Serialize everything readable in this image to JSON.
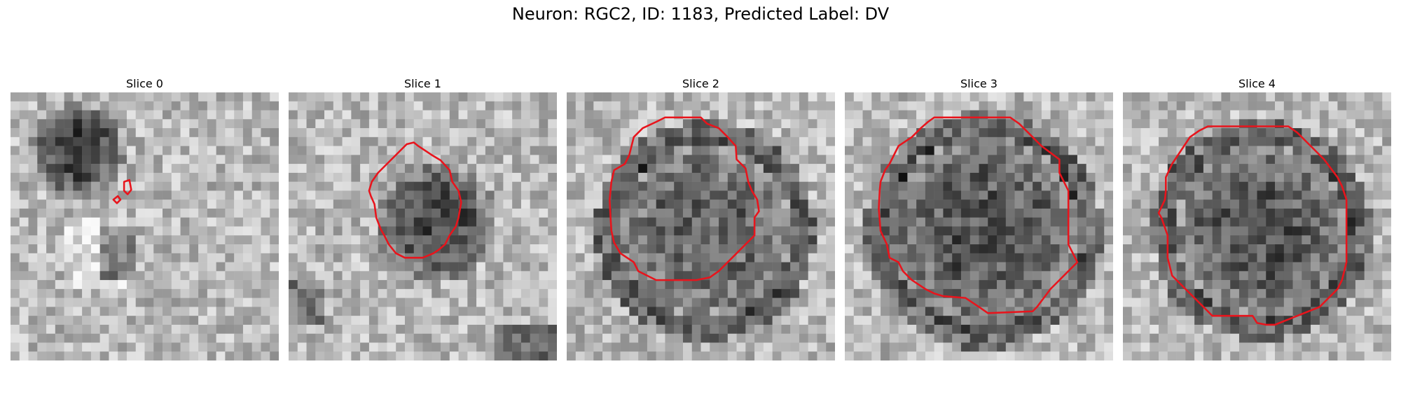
{
  "figure": {
    "title": "Neuron: RGC2, ID: 1183, Predicted Label: DV",
    "grid_size": 30,
    "contour_color": "#e8141c"
  },
  "panels": [
    {
      "title": "Slice 0",
      "seed": 11,
      "blob": {
        "cx": 7,
        "cy": 6,
        "r": 5.5,
        "darkness": 0.45
      },
      "ring": false,
      "contour_type": "small"
    },
    {
      "title": "Slice 1",
      "seed": 23,
      "blob": {
        "cx": 16,
        "cy": 14,
        "r": 7,
        "darkness": 0.4
      },
      "ring": false,
      "contour_type": "medium"
    },
    {
      "title": "Slice 2",
      "seed": 37,
      "blob": {
        "cx": 15,
        "cy": 15,
        "r": 11,
        "darkness": 0.3
      },
      "ring": true,
      "contour_type": "large"
    },
    {
      "title": "Slice 3",
      "seed": 41,
      "blob": {
        "cx": 15,
        "cy": 15,
        "r": 12,
        "darkness": 0.35
      },
      "ring": true,
      "contour_type": "larger"
    },
    {
      "title": "Slice 4",
      "seed": 53,
      "blob": {
        "cx": 15,
        "cy": 15,
        "r": 11,
        "darkness": 0.35
      },
      "ring": true,
      "contour_type": "large4"
    }
  ]
}
